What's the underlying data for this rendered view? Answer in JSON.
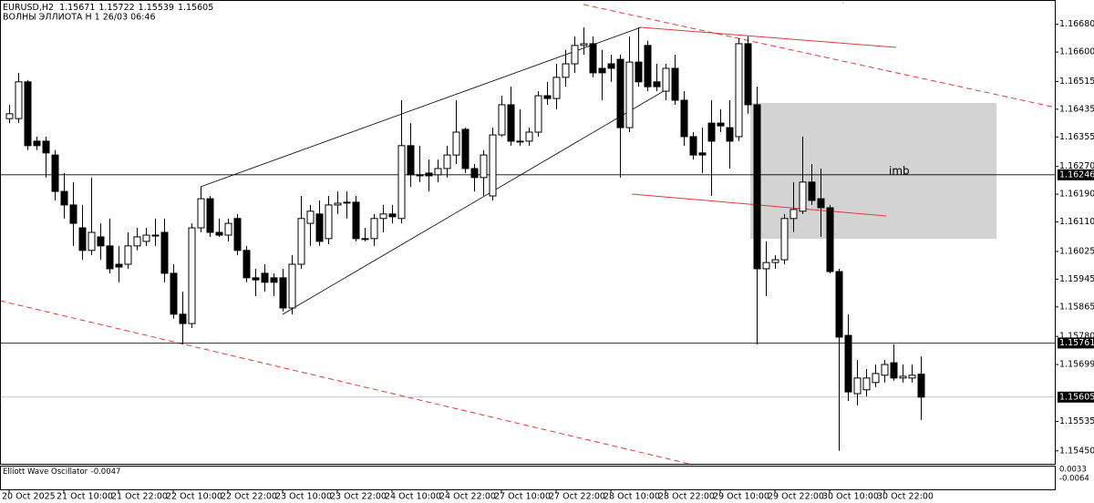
{
  "chart_data": {
    "type": "candlestick",
    "symbol": "EURUSD,H2",
    "subtitle": "ВОЛНЫ ЭЛЛИОТА H 1 26/03 06:46",
    "annotations": [
      "imb"
    ],
    "ylim": [
      1.1541,
      1.1675
    ],
    "yticks": [
      {
        "value": 1.1668,
        "label": "1.16680"
      },
      {
        "value": 1.166,
        "label": "1.16600"
      },
      1.16515,
      1.16435,
      1.16355,
      {
        "value": 1.1627,
        "label": "1.16270"
      },
      {
        "value": 1.1619,
        "label": "1.16190"
      },
      {
        "value": 1.1611,
        "label": "1.16110"
      },
      1.16025,
      1.15945,
      1.15865,
      {
        "value": 1.1578,
        "label": "1.15780"
      },
      1.15699,
      1.15535,
      {
        "value": 1.1545,
        "label": "1.15450"
      }
    ],
    "price_levels": [
      1.16246,
      1.15761
    ],
    "categories": [
      "20 Oct 2025",
      null,
      null,
      null,
      null,
      null,
      "21 Oct 10:00",
      null,
      null,
      null,
      null,
      null,
      "21 Oct 22:00",
      null,
      null,
      null,
      null,
      null,
      "22 Oct 10:00",
      null,
      null,
      null,
      null,
      null,
      "22 Oct 22:00",
      null,
      null,
      null,
      null,
      null,
      "23 Oct 10:00",
      null,
      null,
      null,
      null,
      null,
      "23 Oct 22:00",
      null,
      null,
      null,
      null,
      null,
      "24 Oct 10:00",
      null,
      null,
      null,
      null,
      null,
      "24 Oct 22:00",
      null,
      null,
      null,
      null,
      null,
      "27 Oct 10:00",
      null,
      null,
      null,
      null,
      null,
      "27 Oct 22:00",
      null,
      null,
      null,
      null,
      null,
      "28 Oct 10:00",
      null,
      null,
      null,
      null,
      null,
      "28 Oct 22:00",
      null,
      null,
      null,
      null,
      null,
      "29 Oct 10:00",
      null,
      null,
      null,
      null,
      null,
      "29 Oct 22:00",
      null,
      null,
      null,
      null,
      null,
      "30 Oct 10:00",
      null,
      null,
      null,
      null,
      null,
      "30 Oct 22:00",
      null,
      null,
      null,
      null
    ],
    "ohlc": [
      [
        1.16408,
        1.16448,
        1.16395,
        1.16422
      ],
      [
        1.16408,
        1.1654,
        1.16395,
        1.16514
      ],
      [
        1.16514,
        1.16519,
        1.16317,
        1.1633
      ],
      [
        1.16343,
        1.16356,
        1.16317,
        1.1633
      ],
      [
        1.16343,
        1.16356,
        1.16238,
        1.16309
      ],
      [
        1.16303,
        1.16317,
        1.16172,
        1.16198
      ],
      [
        1.16198,
        1.16251,
        1.1612,
        1.16159
      ],
      [
        1.16159,
        1.16225,
        1.16041,
        1.16106
      ],
      [
        1.16093,
        1.16159,
        1.16001,
        1.16028
      ],
      [
        1.16028,
        1.16238,
        1.16014,
        1.1608
      ],
      [
        1.16067,
        1.16106,
        1.16001,
        1.16041
      ],
      [
        1.16041,
        1.1612,
        1.15962,
        1.15975
      ],
      [
        1.15988,
        1.16041,
        1.15936,
        1.1598
      ],
      [
        1.15988,
        1.1608,
        1.15975,
        1.16041
      ],
      [
        1.16041,
        1.16093,
        1.16028,
        1.16067
      ],
      [
        1.16054,
        1.16093,
        1.16041,
        1.16072
      ],
      [
        1.16072,
        1.1612,
        1.16041,
        1.16072
      ],
      [
        1.1608,
        1.1612,
        1.15936,
        1.15962
      ],
      [
        1.15962,
        1.15988,
        1.15831,
        1.15844
      ],
      [
        1.15844,
        1.15909,
        1.15757,
        1.15817
      ],
      [
        1.15817,
        1.16106,
        1.15804,
        1.16093
      ],
      [
        1.16093,
        1.16211,
        1.1608,
        1.16177
      ],
      [
        1.16177,
        1.16185,
        1.16067,
        1.1608
      ],
      [
        1.1608,
        1.1612,
        1.16067,
        1.16072
      ],
      [
        1.16072,
        1.1612,
        1.16054,
        1.16106
      ],
      [
        1.1612,
        1.16133,
        1.16014,
        1.16028
      ],
      [
        1.16028,
        1.16041,
        1.15936,
        1.15949
      ],
      [
        1.15949,
        1.15975,
        1.15896,
        1.15943
      ],
      [
        1.15962,
        1.15988,
        1.15909,
        1.15936
      ],
      [
        1.15949,
        1.15962,
        1.15896,
        1.15936
      ],
      [
        1.15949,
        1.15975,
        1.15852,
        1.15862
      ],
      [
        1.15862,
        1.16014,
        1.15844,
        1.15988
      ],
      [
        1.15988,
        1.16185,
        1.15975,
        1.1612
      ],
      [
        1.16106,
        1.16159,
        1.16041,
        1.16141
      ],
      [
        1.16133,
        1.16172,
        1.16041,
        1.16054
      ],
      [
        1.16062,
        1.16185,
        1.16046,
        1.16159
      ],
      [
        1.16159,
        1.16198,
        1.16133,
        1.16164
      ],
      [
        1.16167,
        1.16198,
        1.1612,
        1.16167
      ],
      [
        1.16167,
        1.16185,
        1.16054,
        1.16062
      ],
      [
        1.16062,
        1.16093,
        1.16054,
        1.16062
      ],
      [
        1.16062,
        1.16133,
        1.16041,
        1.1612
      ],
      [
        1.1612,
        1.16159,
        1.1608,
        1.16133
      ],
      [
        1.16133,
        1.16159,
        1.16106,
        1.16125
      ],
      [
        1.1612,
        1.16461,
        1.16106,
        1.1633
      ],
      [
        1.1633,
        1.16395,
        1.16211,
        1.16246
      ],
      [
        1.16246,
        1.1633,
        1.16225,
        1.16243
      ],
      [
        1.16251,
        1.1629,
        1.16198,
        1.16243
      ],
      [
        1.16246,
        1.1629,
        1.16225,
        1.16264
      ],
      [
        1.16264,
        1.1633,
        1.16238,
        1.16303
      ],
      [
        1.16303,
        1.16461,
        1.16277,
        1.16369
      ],
      [
        1.16377,
        1.16382,
        1.16251,
        1.16264
      ],
      [
        1.16264,
        1.16277,
        1.16198,
        1.16238
      ],
      [
        1.16238,
        1.16317,
        1.16185,
        1.16303
      ],
      [
        1.16185,
        1.16382,
        1.16172,
        1.16361
      ],
      [
        1.16361,
        1.16474,
        1.16356,
        1.16448
      ],
      [
        1.16448,
        1.165,
        1.1633,
        1.16343
      ],
      [
        1.16343,
        1.16435,
        1.1633,
        1.16343
      ],
      [
        1.16343,
        1.16382,
        1.1633,
        1.16369
      ],
      [
        1.16369,
        1.16487,
        1.16356,
        1.16474
      ],
      [
        1.16474,
        1.16514,
        1.16448,
        1.16466
      ],
      [
        1.16466,
        1.16566,
        1.16435,
        1.16527
      ],
      [
        1.16527,
        1.16606,
        1.165,
        1.16566
      ],
      [
        1.16566,
        1.16645,
        1.1654,
        1.16619
      ],
      [
        1.16619,
        1.16671,
        1.16592,
        1.16624
      ],
      [
        1.16624,
        1.16645,
        1.16527,
        1.1654
      ],
      [
        1.16553,
        1.16606,
        1.16461,
        1.1654
      ],
      [
        1.16566,
        1.16592,
        1.16514,
        1.16553
      ],
      [
        1.16579,
        1.16592,
        1.16238,
        1.16382
      ],
      [
        1.16382,
        1.16645,
        1.16369,
        1.16571
      ],
      [
        1.16571,
        1.16671,
        1.165,
        1.16514
      ],
      [
        1.16619,
        1.16632,
        1.16487,
        1.165
      ],
      [
        1.16514,
        1.16566,
        1.16487,
        1.165
      ],
      [
        1.16487,
        1.16566,
        1.16461,
        1.16553
      ],
      [
        1.16553,
        1.16592,
        1.16448,
        1.16461
      ],
      [
        1.16461,
        1.16487,
        1.1633,
        1.16356
      ],
      [
        1.16356,
        1.16369,
        1.1629,
        1.16303
      ],
      [
        1.16309,
        1.16382,
        1.16251,
        1.16303
      ],
      [
        1.16395,
        1.16461,
        1.16185,
        1.16343
      ],
      [
        1.16395,
        1.16435,
        1.16369,
        1.16387
      ],
      [
        1.16382,
        1.16461,
        1.16264,
        1.16343
      ],
      [
        1.16356,
        1.1664,
        1.16343,
        1.16624
      ],
      [
        1.16624,
        1.16645,
        1.16422,
        1.16448
      ],
      [
        1.16448,
        1.165,
        1.15757,
        1.15975
      ],
      [
        1.15975,
        1.16054,
        1.15896,
        1.15993
      ],
      [
        1.15993,
        1.16014,
        1.15975,
        1.16001
      ],
      [
        1.16001,
        1.16133,
        1.15988,
        1.1612
      ],
      [
        1.1612,
        1.16225,
        1.1608,
        1.16146
      ],
      [
        1.16141,
        1.16356,
        1.16133,
        1.16225
      ],
      [
        1.16225,
        1.16277,
        1.16159,
        1.16172
      ],
      [
        1.16177,
        1.16264,
        1.16067,
        1.16151
      ],
      [
        1.16151,
        1.16159,
        1.15962,
        1.15967
      ],
      [
        1.15967,
        1.15975,
        1.1545,
        1.15778
      ],
      [
        1.15783,
        1.15844,
        1.15594,
        1.1562
      ],
      [
        1.15615,
        1.15712,
        1.15581,
        1.1566
      ],
      [
        1.15626,
        1.15686,
        1.15607,
        1.1566
      ],
      [
        1.15647,
        1.15699,
        1.15634,
        1.15673
      ],
      [
        1.15668,
        1.15712,
        1.15647,
        1.15699
      ],
      [
        1.15704,
        1.15757,
        1.15652,
        1.1566
      ],
      [
        1.1566,
        1.15699,
        1.15647,
        1.15665
      ],
      [
        1.1566,
        1.15699,
        1.15647,
        1.15668
      ],
      [
        1.15671,
        1.15722,
        1.15539,
        1.15605
      ]
    ],
    "oscillator": {
      "name": "Elliott Wave Oscillator",
      "value": -0.0047,
      "yticks": [
        0.0033,
        -0.0064
      ]
    }
  }
}
